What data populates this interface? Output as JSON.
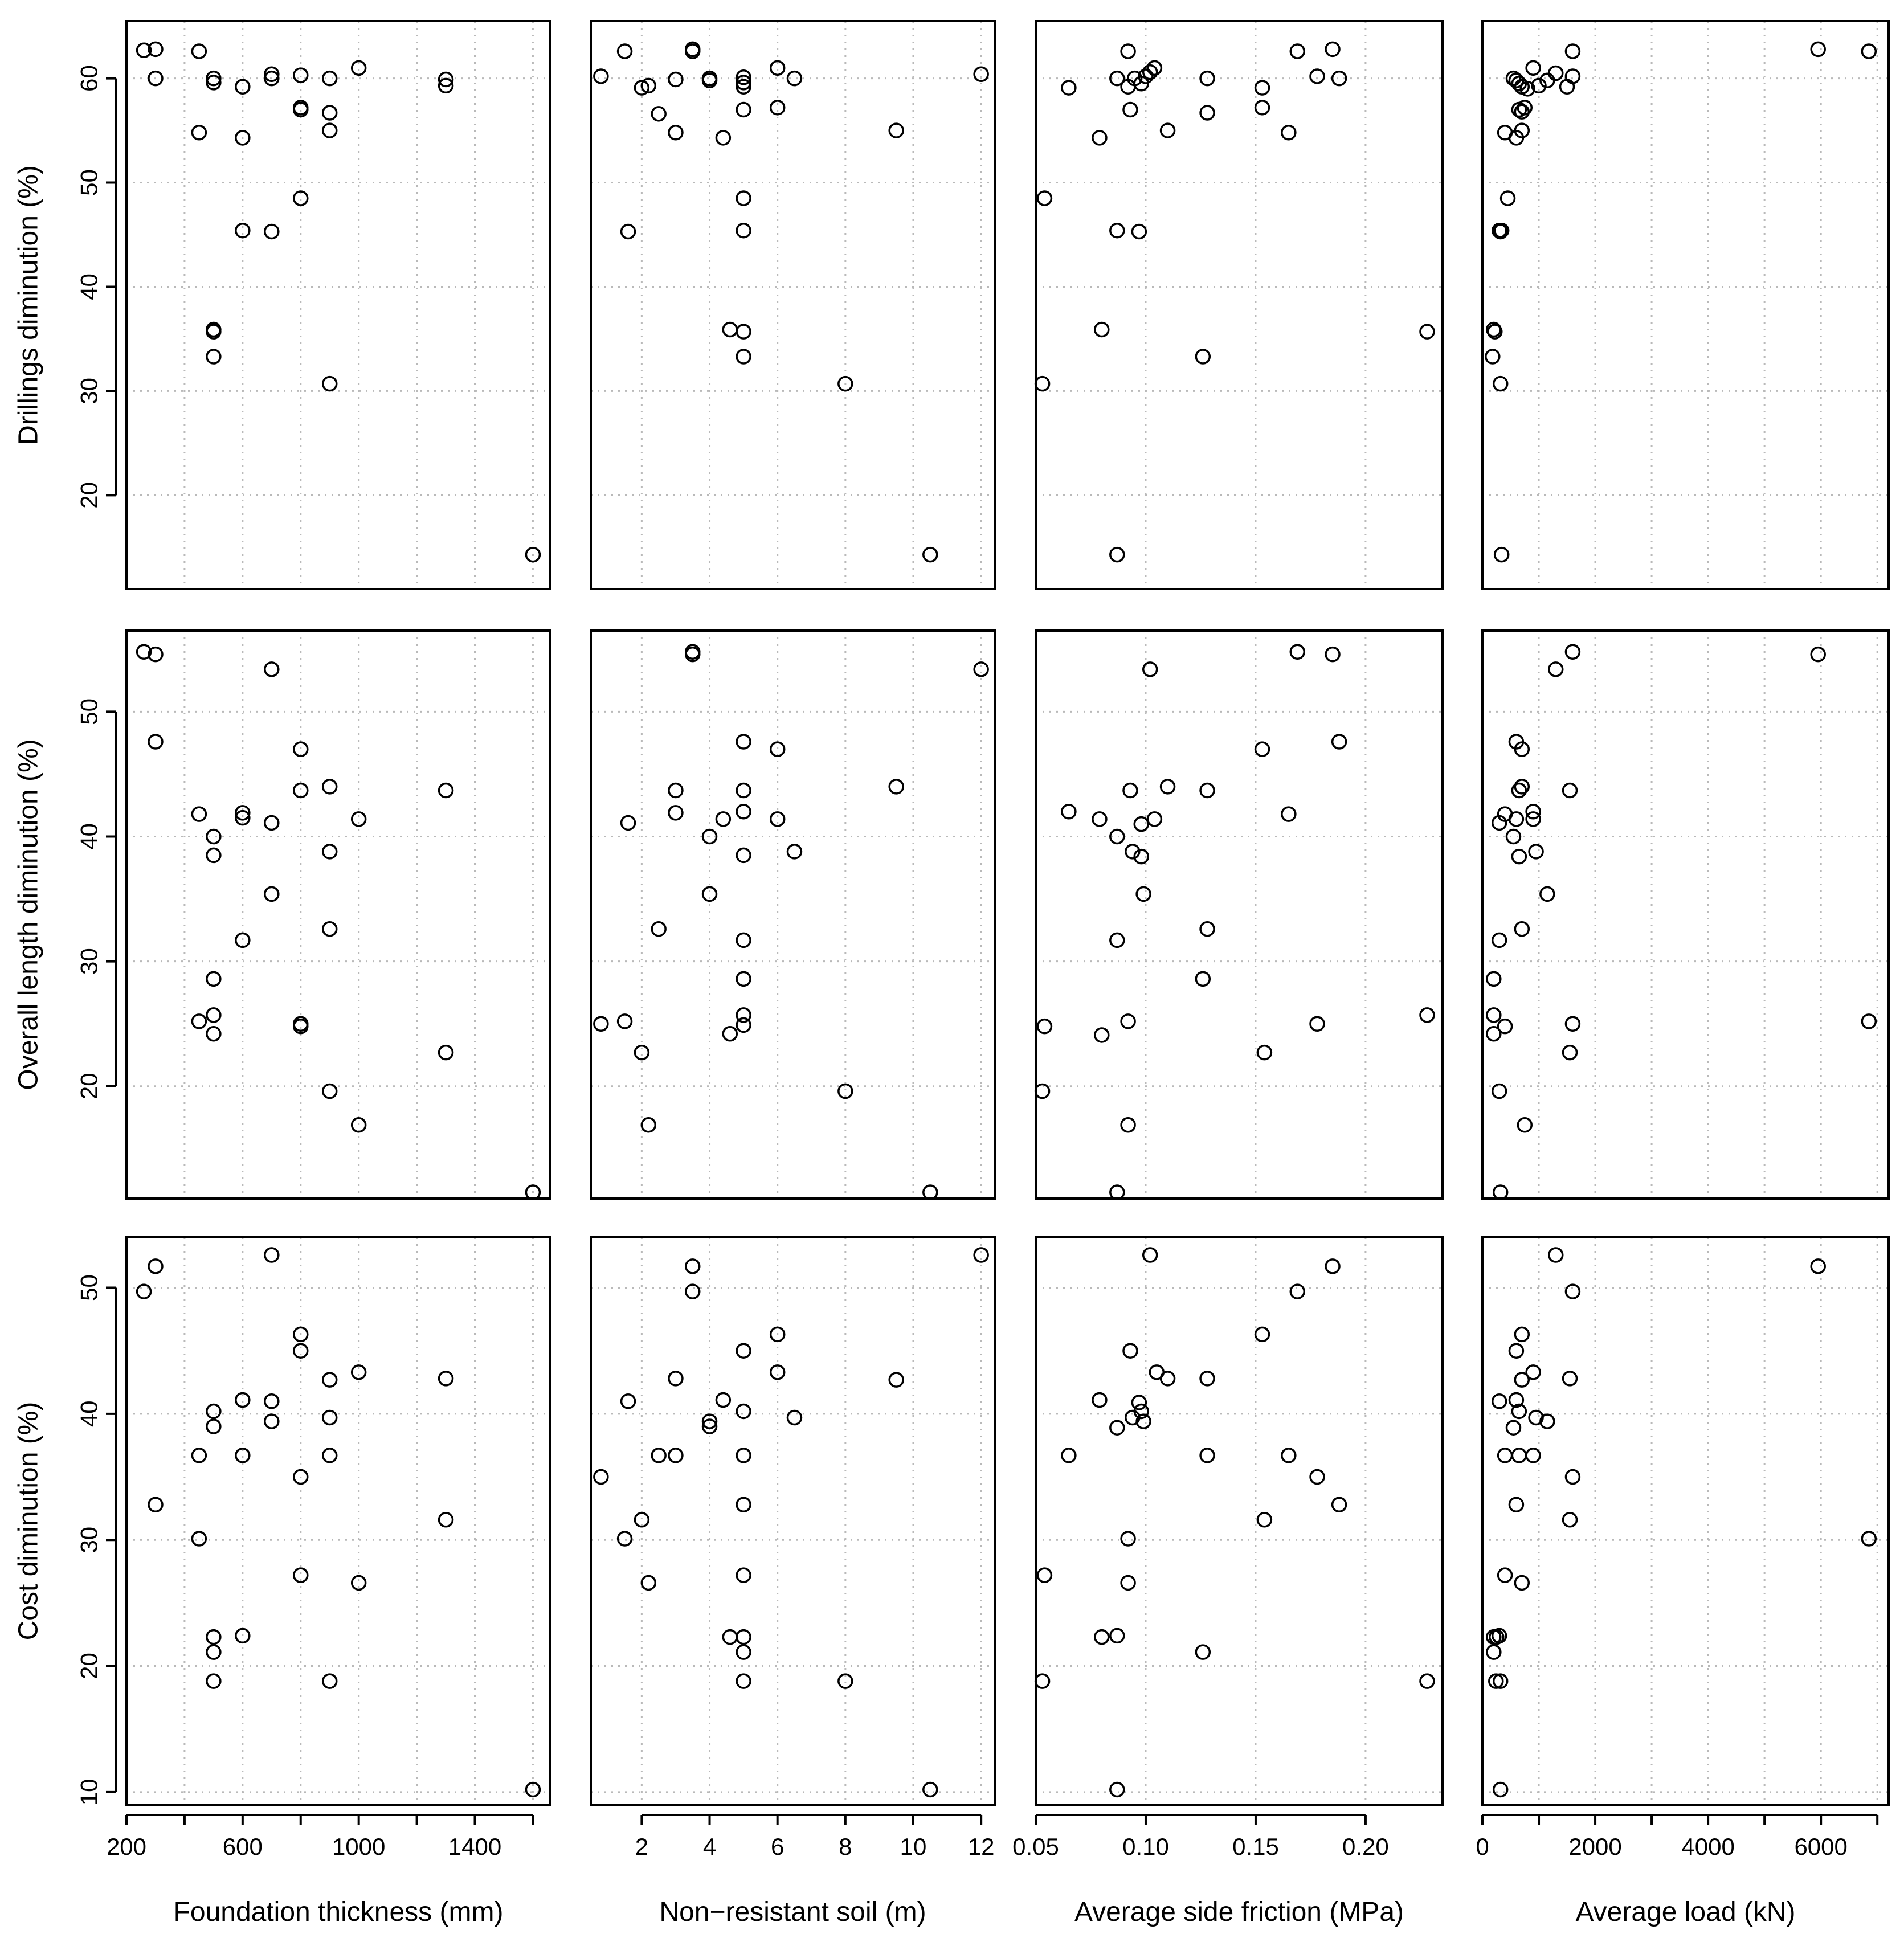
{
  "chart_data": {
    "type": "scatter",
    "layout": "scatterplot matrix 3 rows x 4 columns",
    "grid": true,
    "point_style": "open circle",
    "x_variables": [
      {
        "label": "Foundation thickness (mm)",
        "xlim": [
          200,
          1660
        ],
        "ticks": [
          200,
          400,
          600,
          800,
          1000,
          1200,
          1400,
          1600
        ],
        "tick_labels": [
          "200",
          "",
          "600",
          "",
          "1000",
          "",
          "1400",
          ""
        ]
      },
      {
        "label": "Non−resistant soil (m)",
        "xlim": [
          0.5,
          12.4
        ],
        "ticks": [
          2,
          4,
          6,
          8,
          10,
          12
        ],
        "tick_labels": [
          "2",
          "4",
          "6",
          "8",
          "10",
          "12"
        ]
      },
      {
        "label": "Average side friction (MPa)",
        "xlim": [
          0.05,
          0.235
        ],
        "ticks": [
          0.05,
          0.1,
          0.15,
          0.2
        ],
        "tick_labels": [
          "0.05",
          "0.10",
          "0.15",
          "0.20"
        ]
      },
      {
        "label": "Average load (kN)",
        "xlim": [
          0,
          7200
        ],
        "ticks": [
          0,
          1000,
          2000,
          3000,
          4000,
          5000,
          6000,
          7000
        ],
        "tick_labels": [
          "0",
          "",
          "2000",
          "",
          "4000",
          "",
          "6000",
          ""
        ]
      }
    ],
    "y_variables": [
      {
        "label": "Drillings diminution (%)",
        "ylim": [
          11,
          65.5
        ],
        "ticks": [
          20,
          30,
          40,
          50,
          60
        ],
        "tick_labels": [
          "20",
          "30",
          "40",
          "50",
          "60"
        ]
      },
      {
        "label": "Overall length diminution (%)",
        "ylim": [
          11,
          56.5
        ],
        "ticks": [
          20,
          30,
          40,
          50
        ],
        "tick_labels": [
          "20",
          "30",
          "40",
          "50"
        ]
      },
      {
        "label": "Cost diminution (%)",
        "ylim": [
          9,
          54
        ],
        "ticks": [
          10,
          20,
          30,
          40,
          50
        ],
        "tick_labels": [
          "10",
          "20",
          "30",
          "40",
          "50"
        ]
      }
    ],
    "panels": [
      {
        "row": 0,
        "col": 0,
        "x": [
          260,
          300,
          300,
          450,
          500,
          500,
          600,
          700,
          700,
          800,
          900,
          1000,
          1300,
          1300,
          450,
          600,
          800,
          800,
          900,
          900,
          800,
          600,
          700,
          500,
          500,
          500,
          900,
          1600
        ],
        "y": [
          62.7,
          62.8,
          60.0,
          62.6,
          60.0,
          59.6,
          59.2,
          60.4,
          60.0,
          60.3,
          60.0,
          61.0,
          59.9,
          59.3,
          54.8,
          54.3,
          57.2,
          57.0,
          56.7,
          55.0,
          48.5,
          45.4,
          45.3,
          35.9,
          35.7,
          33.3,
          30.7,
          14.3
        ]
      },
      {
        "row": 0,
        "col": 1,
        "x": [
          1.5,
          3.5,
          3.5,
          0.8,
          2.0,
          2.2,
          3.0,
          4.0,
          4.0,
          5.0,
          5.0,
          5.0,
          6.0,
          6.5,
          12.0,
          2.5,
          3.0,
          4.4,
          5.0,
          6.0,
          9.5,
          5.0,
          5.0,
          1.6,
          4.6,
          5.0,
          5.0,
          8.0,
          10.5
        ],
        "y": [
          62.6,
          62.8,
          62.6,
          60.2,
          59.1,
          59.3,
          59.9,
          60.0,
          59.8,
          60.1,
          59.6,
          59.2,
          61.0,
          60.0,
          60.4,
          56.6,
          54.8,
          54.3,
          57.0,
          57.2,
          55.0,
          48.5,
          45.4,
          45.3,
          35.9,
          35.7,
          33.3,
          30.7,
          14.3
        ]
      },
      {
        "row": 0,
        "col": 2,
        "x": [
          0.092,
          0.169,
          0.185,
          0.065,
          0.087,
          0.092,
          0.095,
          0.098,
          0.1,
          0.102,
          0.104,
          0.128,
          0.153,
          0.178,
          0.188,
          0.079,
          0.093,
          0.11,
          0.128,
          0.153,
          0.165,
          0.054,
          0.087,
          0.097,
          0.08,
          0.228,
          0.126,
          0.053,
          0.087
        ],
        "y": [
          62.6,
          62.6,
          62.8,
          59.1,
          60.0,
          59.2,
          60.0,
          59.5,
          60.2,
          60.6,
          61.0,
          60.0,
          59.1,
          60.2,
          60.0,
          54.3,
          57.0,
          55.0,
          56.7,
          57.2,
          54.8,
          48.5,
          45.4,
          45.3,
          35.9,
          35.7,
          33.3,
          30.7,
          14.3
        ]
      },
      {
        "row": 0,
        "col": 3,
        "x": [
          1600,
          5950,
          6850,
          550,
          600,
          650,
          700,
          800,
          900,
          1000,
          1150,
          1300,
          1500,
          1600,
          400,
          600,
          650,
          700,
          750,
          700,
          450,
          300,
          320,
          340,
          200,
          220,
          180,
          320,
          340
        ],
        "y": [
          62.6,
          62.8,
          62.6,
          60.0,
          59.8,
          59.5,
          59.2,
          59.0,
          61.0,
          59.3,
          59.8,
          60.5,
          59.2,
          60.2,
          54.8,
          54.3,
          57.0,
          56.8,
          57.2,
          55.0,
          48.5,
          45.4,
          45.3,
          45.4,
          35.9,
          35.7,
          33.3,
          30.7,
          14.3
        ]
      },
      {
        "row": 1,
        "col": 0,
        "x": [
          260,
          300,
          700,
          300,
          800,
          800,
          900,
          1300,
          450,
          600,
          600,
          700,
          1000,
          500,
          500,
          900,
          700,
          600,
          900,
          500,
          500,
          450,
          500,
          800,
          800,
          1300,
          900,
          1000,
          1600
        ],
        "y": [
          54.8,
          54.6,
          53.4,
          47.6,
          47.0,
          43.7,
          44.0,
          43.7,
          41.8,
          41.9,
          41.5,
          41.1,
          41.4,
          40.0,
          38.5,
          38.8,
          35.4,
          31.7,
          32.6,
          28.6,
          25.7,
          25.2,
          24.2,
          25.0,
          24.8,
          22.7,
          19.6,
          16.9,
          11.5
        ]
      },
      {
        "row": 1,
        "col": 1,
        "x": [
          3.5,
          3.5,
          12.0,
          5.0,
          6.0,
          3.0,
          5.0,
          9.5,
          1.6,
          3.0,
          4.4,
          5.0,
          6.0,
          4.0,
          5.0,
          6.5,
          4.0,
          2.5,
          5.0,
          5.0,
          0.8,
          1.5,
          5.0,
          5.0,
          4.6,
          2.0,
          8.0,
          2.2,
          10.5
        ],
        "y": [
          54.8,
          54.6,
          53.4,
          47.6,
          47.0,
          43.7,
          43.7,
          44.0,
          41.1,
          41.9,
          41.4,
          42.0,
          41.4,
          40.0,
          38.5,
          38.8,
          35.4,
          32.6,
          31.7,
          28.6,
          25.0,
          25.2,
          25.7,
          24.9,
          24.2,
          22.7,
          19.6,
          16.9,
          11.5
        ]
      },
      {
        "row": 1,
        "col": 2,
        "x": [
          0.169,
          0.185,
          0.102,
          0.188,
          0.153,
          0.093,
          0.11,
          0.128,
          0.065,
          0.079,
          0.098,
          0.104,
          0.165,
          0.087,
          0.094,
          0.098,
          0.099,
          0.128,
          0.087,
          0.126,
          0.054,
          0.092,
          0.178,
          0.228,
          0.08,
          0.154,
          0.053,
          0.092,
          0.087
        ],
        "y": [
          54.8,
          54.6,
          53.4,
          47.6,
          47.0,
          43.7,
          44.0,
          43.7,
          42.0,
          41.4,
          41.0,
          41.4,
          41.8,
          40.0,
          38.8,
          38.4,
          35.4,
          32.6,
          31.7,
          28.6,
          24.8,
          25.2,
          25.0,
          25.7,
          24.1,
          22.7,
          19.6,
          16.9,
          11.5
        ]
      },
      {
        "row": 1,
        "col": 3,
        "x": [
          1600,
          5950,
          1300,
          600,
          700,
          650,
          700,
          1550,
          400,
          300,
          600,
          900,
          900,
          550,
          650,
          950,
          1150,
          700,
          300,
          200,
          200,
          400,
          200,
          1600,
          6850,
          1550,
          300,
          750,
          320
        ],
        "y": [
          54.8,
          54.6,
          53.4,
          47.6,
          47.0,
          43.7,
          44.0,
          43.7,
          41.8,
          41.1,
          41.4,
          42.0,
          41.4,
          40.0,
          38.4,
          38.8,
          35.4,
          32.6,
          31.7,
          28.6,
          25.7,
          24.8,
          24.2,
          25.0,
          25.2,
          22.7,
          19.6,
          16.9,
          11.5
        ]
      },
      {
        "row": 2,
        "col": 0,
        "x": [
          700,
          300,
          260,
          800,
          800,
          1000,
          900,
          1300,
          600,
          700,
          500,
          500,
          700,
          900,
          450,
          600,
          900,
          800,
          300,
          1300,
          450,
          800,
          1000,
          500,
          500,
          600,
          500,
          900,
          1600
        ],
        "y": [
          52.6,
          51.7,
          49.7,
          46.3,
          45.0,
          43.3,
          42.7,
          42.8,
          41.1,
          41.0,
          40.2,
          39.0,
          39.4,
          39.7,
          36.7,
          36.7,
          36.7,
          35.0,
          32.8,
          31.6,
          30.1,
          27.2,
          26.6,
          22.3,
          21.1,
          22.4,
          18.8,
          18.8,
          10.2
        ]
      },
      {
        "row": 2,
        "col": 1,
        "x": [
          12.0,
          3.5,
          3.5,
          6.0,
          5.0,
          6.0,
          3.0,
          9.5,
          1.6,
          4.4,
          5.0,
          4.0,
          4.0,
          6.5,
          2.5,
          3.0,
          5.0,
          0.8,
          5.0,
          2.0,
          1.5,
          5.0,
          2.2,
          4.6,
          5.0,
          5.0,
          5.0,
          8.0,
          10.5
        ],
        "y": [
          52.6,
          51.7,
          49.7,
          46.3,
          45.0,
          43.3,
          42.8,
          42.7,
          41.0,
          41.1,
          40.2,
          39.0,
          39.4,
          39.7,
          36.7,
          36.7,
          36.7,
          35.0,
          32.8,
          31.6,
          30.1,
          27.2,
          26.6,
          22.3,
          22.3,
          21.1,
          18.8,
          18.8,
          10.2
        ]
      },
      {
        "row": 2,
        "col": 2,
        "x": [
          0.102,
          0.185,
          0.169,
          0.153,
          0.093,
          0.105,
          0.11,
          0.128,
          0.079,
          0.097,
          0.098,
          0.087,
          0.094,
          0.099,
          0.065,
          0.128,
          0.165,
          0.178,
          0.188,
          0.154,
          0.092,
          0.054,
          0.092,
          0.08,
          0.087,
          0.126,
          0.053,
          0.228,
          0.087
        ],
        "y": [
          52.6,
          51.7,
          49.7,
          46.3,
          45.0,
          43.3,
          42.8,
          42.8,
          41.1,
          40.9,
          40.2,
          38.9,
          39.7,
          39.4,
          36.7,
          36.7,
          36.7,
          35.0,
          32.8,
          31.6,
          30.1,
          27.2,
          26.6,
          22.3,
          22.4,
          21.1,
          18.8,
          18.8,
          10.2
        ]
      },
      {
        "row": 2,
        "col": 3,
        "x": [
          1300,
          5950,
          1600,
          700,
          600,
          900,
          700,
          1550,
          300,
          600,
          650,
          550,
          950,
          1150,
          400,
          650,
          900,
          1600,
          600,
          1550,
          6850,
          400,
          700,
          200,
          250,
          300,
          200,
          240,
          320,
          320
        ],
        "y": [
          52.6,
          51.7,
          49.7,
          46.3,
          45.0,
          43.3,
          42.7,
          42.8,
          41.0,
          41.1,
          40.2,
          38.9,
          39.7,
          39.4,
          36.7,
          36.7,
          36.7,
          35.0,
          32.8,
          31.6,
          30.1,
          27.2,
          26.6,
          22.3,
          22.3,
          22.4,
          21.1,
          18.8,
          18.8,
          10.2
        ]
      }
    ]
  }
}
